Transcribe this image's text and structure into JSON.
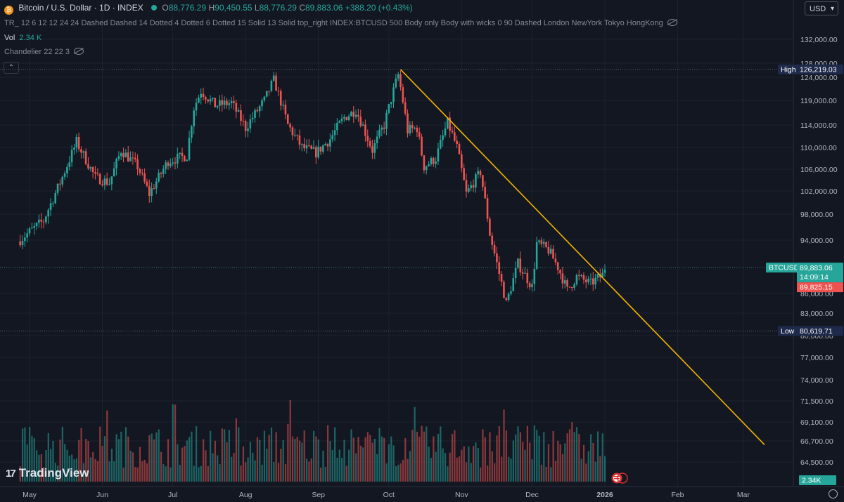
{
  "header": {
    "symbol": "Bitcoin / U.S. Dollar · 1D · INDEX",
    "open_label": "O",
    "open": "88,776.29",
    "high_label": "H",
    "high": "90,450.55",
    "low_label": "L",
    "low": "88,776.29",
    "close_label": "C",
    "close": "89,883.06",
    "change": "+388.20 (+0.43%)"
  },
  "indicator_line": "TR_   12 6 12 12 24 24 Dashed Dashed 14 Dotted 4 Dotted 6 Dotted 15 Solid 13 Solid top_right INDEX:BTCUSD 500 Body only Body with wicks 0 90 Dashed London NewYork Tokyo HongKong",
  "volume_label": "Vol",
  "volume_value": "2.34 K",
  "chandelier": "Chandelier 22 22 3",
  "currency": "USD",
  "brand": "TradingView",
  "colors": {
    "up": "#26a69a",
    "down": "#ef5350",
    "trendline": "#f0b400",
    "background": "#131722"
  },
  "chart_data": {
    "type": "candlestick",
    "x_ticks": [
      "May",
      "Jun",
      "Jul",
      "Aug",
      "Sep",
      "Oct",
      "Nov",
      "Dec",
      "2026",
      "Feb",
      "Mar"
    ],
    "y_ticks": [
      "132,000.00",
      "128,000.00",
      "124,000.00",
      "119,000.00",
      "114,000.00",
      "110,000.00",
      "106,000.00",
      "102,000.00",
      "98,000.00",
      "94,000.00",
      "86,000.00",
      "83,000.00",
      "80,000.00",
      "77,000.00",
      "74,000.00",
      "71,500.00",
      "69,100.00",
      "66,700.00",
      "64,500.00"
    ],
    "y_values": [
      132000,
      128000,
      124000,
      119000,
      114000,
      110000,
      106000,
      102000,
      98000,
      94000,
      86000,
      83000,
      80000,
      77000,
      74000,
      71500,
      69100,
      66700,
      64500
    ],
    "high_line": {
      "label": "High",
      "value": "126,219.03",
      "y": 126219.03
    },
    "low_line": {
      "label": "Low",
      "value": "80,619.71",
      "y": 80619.71
    },
    "last_price": {
      "symbol": "BTCUSD",
      "price": "89,883.06",
      "countdown": "14:09:14",
      "y": 89883.06
    },
    "prev_price": {
      "price": "89,825.15",
      "y": 89825.15
    },
    "volume_badge": "2.34K",
    "close_anchors": [
      [
        "2025-04-27",
        93800
      ],
      [
        "2025-05-08",
        97000
      ],
      [
        "2025-05-15",
        103500
      ],
      [
        "2025-05-22",
        111000
      ],
      [
        "2025-05-30",
        104500
      ],
      [
        "2025-06-05",
        103500
      ],
      [
        "2025-06-10",
        109500
      ],
      [
        "2025-06-17",
        106500
      ],
      [
        "2025-06-22",
        101500
      ],
      [
        "2025-06-30",
        107500
      ],
      [
        "2025-07-08",
        108500
      ],
      [
        "2025-07-11",
        117500
      ],
      [
        "2025-07-14",
        121000
      ],
      [
        "2025-07-20",
        118000
      ],
      [
        "2025-07-27",
        118500
      ],
      [
        "2025-08-02",
        113500
      ],
      [
        "2025-08-10",
        119000
      ],
      [
        "2025-08-14",
        123500
      ],
      [
        "2025-08-20",
        114000
      ],
      [
        "2025-08-26",
        110000
      ],
      [
        "2025-09-01",
        109000
      ],
      [
        "2025-09-07",
        111500
      ],
      [
        "2025-09-13",
        115500
      ],
      [
        "2025-09-18",
        117000
      ],
      [
        "2025-09-25",
        109500
      ],
      [
        "2025-09-30",
        114000
      ],
      [
        "2025-10-06",
        124700
      ],
      [
        "2025-10-10",
        113000
      ],
      [
        "2025-10-14",
        113500
      ],
      [
        "2025-10-17",
        106500
      ],
      [
        "2025-10-22",
        108000
      ],
      [
        "2025-10-27",
        114500
      ],
      [
        "2025-10-31",
        110000
      ],
      [
        "2025-11-04",
        101500
      ],
      [
        "2025-11-10",
        105500
      ],
      [
        "2025-11-14",
        95000
      ],
      [
        "2025-11-21",
        84500
      ],
      [
        "2025-11-26",
        90500
      ],
      [
        "2025-12-02",
        87000
      ],
      [
        "2025-12-04",
        93500
      ],
      [
        "2025-12-09",
        92500
      ],
      [
        "2025-12-13",
        90000
      ],
      [
        "2025-12-17",
        86500
      ],
      [
        "2025-12-21",
        88500
      ],
      [
        "2025-12-27",
        87500
      ],
      [
        "2026-01-01",
        88800
      ],
      [
        "2026-01-02",
        89883
      ]
    ],
    "trendline": {
      "start": [
        "2025-10-06",
        126219
      ],
      "end": [
        "2026-03-10",
        66300
      ]
    }
  }
}
